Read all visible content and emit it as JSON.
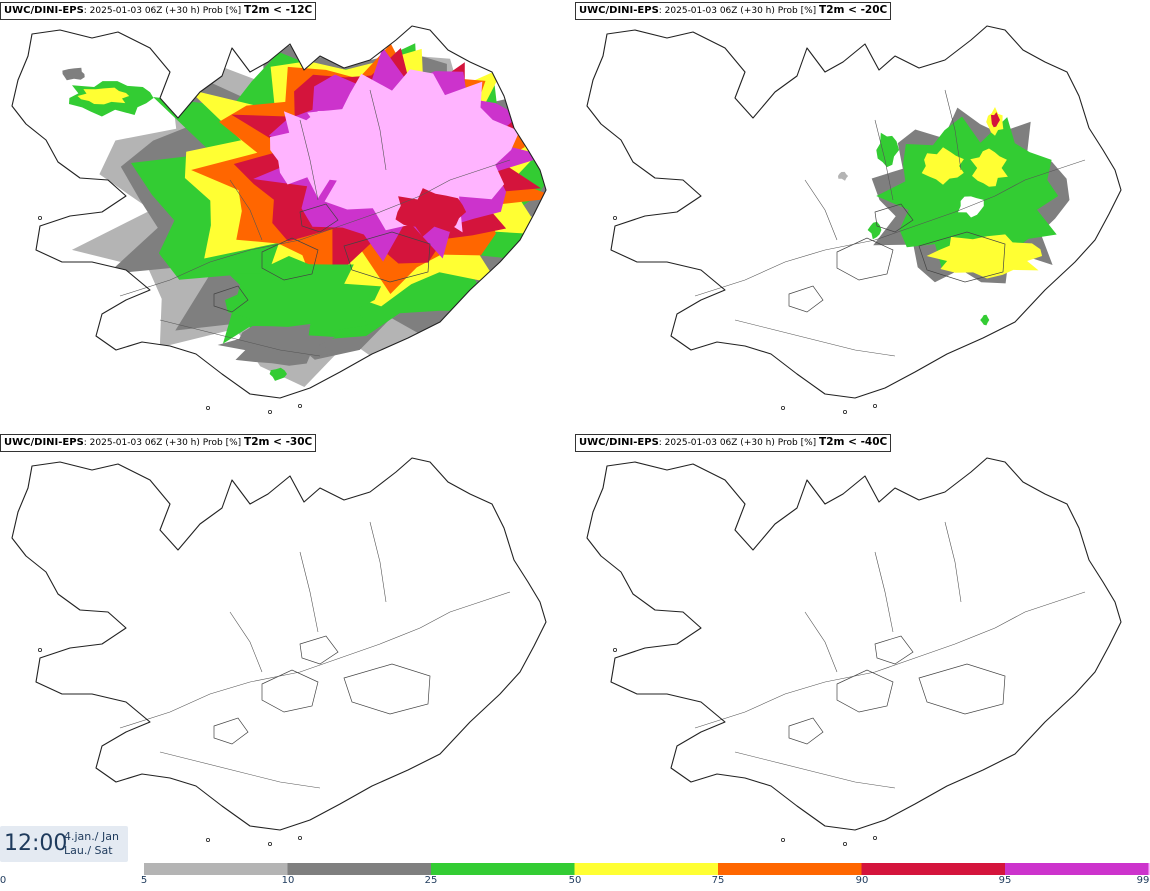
{
  "panels": [
    {
      "model": "UWC/DINI-EPS",
      "run": ": 2025-01-03 06Z (+30 h) Prob [%]",
      "variable": "T2m < -12C",
      "coverage": "extensive"
    },
    {
      "model": "UWC/DINI-EPS",
      "run": ": 2025-01-03 06Z (+30 h) Prob [%]",
      "variable": "T2m < -20C",
      "coverage": "moderate"
    },
    {
      "model": "UWC/DINI-EPS",
      "run": ": 2025-01-03 06Z (+30 h) Prob [%]",
      "variable": "T2m < -30C",
      "coverage": "none"
    },
    {
      "model": "UWC/DINI-EPS",
      "run": ": 2025-01-03 06Z (+30 h) Prob [%]",
      "variable": "T2m < -40C",
      "coverage": "none"
    }
  ],
  "time": {
    "clock": "12:00",
    "date_line1": "4.jan./ Jan",
    "date_line2": "Lau./ Sat"
  },
  "legend": {
    "ticks": [
      "0",
      "5",
      "10",
      "25",
      "50",
      "75",
      "90",
      "95",
      "99"
    ],
    "colors": [
      "#b4b4b4",
      "#7f7f7f",
      "#33cc33",
      "#ffff33",
      "#ff6600",
      "#d4143c",
      "#cc33cc",
      "#ffb4ff"
    ]
  }
}
